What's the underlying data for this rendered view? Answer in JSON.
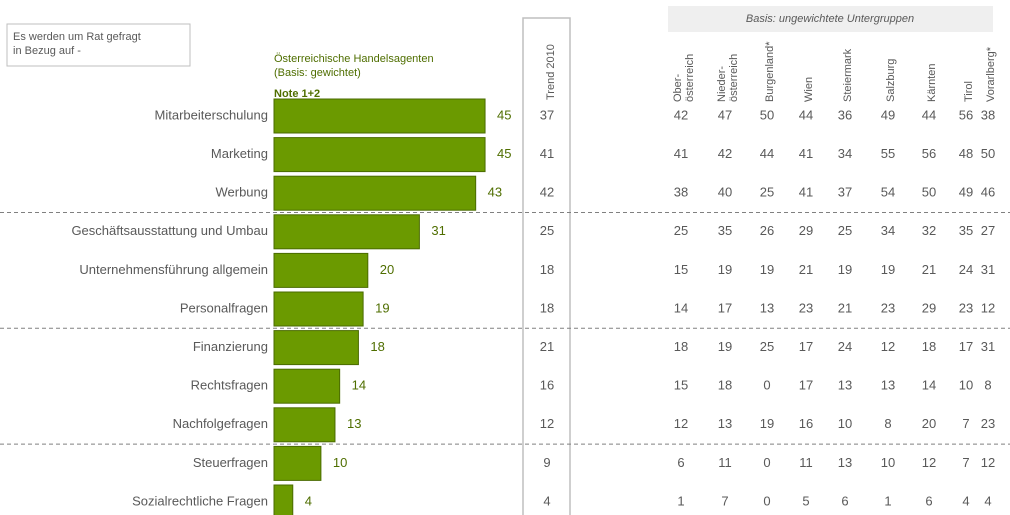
{
  "chart_data": {
    "type": "bar",
    "question": "Es werden um Rat gefragt in Bezug auf -",
    "series_label": [
      "Österreichische Handelsagenten",
      "(Basis: gewichtet)"
    ],
    "note": "Note 1+2",
    "color": "#6b9a00",
    "categories": [
      "Mitarbeiterschulung",
      "Marketing",
      "Werbung",
      "Geschäftsausstattung und Umbau",
      "Unternehmensführung allgemein",
      "Personalfragen",
      "Finanzierung",
      "Rechtsfragen",
      "Nachfolgefragen",
      "Steuerfragen",
      "Sozialrechtliche Fragen"
    ],
    "values": [
      45,
      45,
      43,
      31,
      20,
      19,
      18,
      14,
      13,
      10,
      4
    ],
    "trend": {
      "name": "Trend 2010",
      "values": [
        37,
        41,
        42,
        25,
        18,
        18,
        21,
        16,
        12,
        9,
        4
      ]
    },
    "subgroups": {
      "title": "Basis: ungewichtete Untergruppen",
      "columns": [
        {
          "name": "Ober-\nösterreich",
          "values": [
            42,
            41,
            38,
            25,
            15,
            14,
            18,
            15,
            12,
            6,
            1
          ]
        },
        {
          "name": "Nieder-\nösterreich",
          "values": [
            47,
            42,
            40,
            35,
            19,
            17,
            19,
            18,
            13,
            11,
            7
          ]
        },
        {
          "name": "Burgenland*",
          "values": [
            50,
            44,
            25,
            26,
            19,
            13,
            25,
            0,
            19,
            0,
            0
          ]
        },
        {
          "name": "Wien",
          "values": [
            44,
            41,
            41,
            29,
            21,
            23,
            17,
            17,
            16,
            11,
            5
          ]
        },
        {
          "name": "Steiermark",
          "values": [
            36,
            34,
            37,
            25,
            19,
            21,
            24,
            13,
            10,
            13,
            6
          ]
        },
        {
          "name": "Salzburg",
          "values": [
            49,
            55,
            54,
            34,
            19,
            23,
            12,
            13,
            8,
            10,
            1
          ]
        },
        {
          "name": "Kärnten",
          "values": [
            44,
            56,
            50,
            32,
            21,
            29,
            18,
            14,
            20,
            12,
            6
          ]
        },
        {
          "name": "Tirol",
          "values": [
            56,
            48,
            49,
            35,
            24,
            23,
            17,
            10,
            7,
            7,
            4
          ]
        },
        {
          "name": "Vorarlberg*",
          "values": [
            38,
            50,
            46,
            27,
            31,
            12,
            31,
            8,
            23,
            12,
            4
          ]
        }
      ]
    }
  }
}
